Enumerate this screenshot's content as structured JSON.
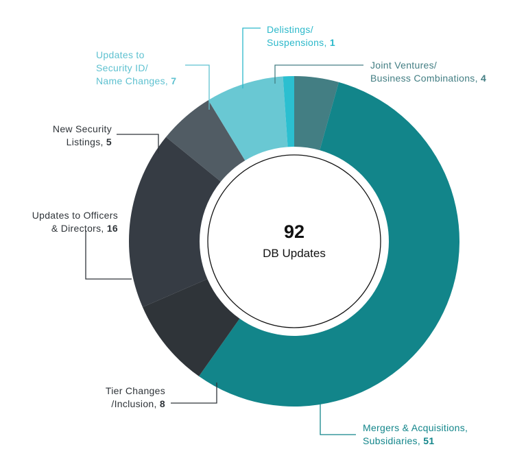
{
  "chart_data": {
    "type": "pie",
    "variant": "donut",
    "center": {
      "value": "92",
      "caption": "DB Updates"
    },
    "total": 92,
    "slices": [
      {
        "label_lines": [
          "Mergers & Acquisitions,",
          "Subsidiaries,"
        ],
        "value": 51,
        "color": "#12858A",
        "text_color": "#12858A"
      },
      {
        "label_lines": [
          "Tier Changes",
          "/Inclusion,"
        ],
        "value": 8,
        "color": "#2F3439",
        "text_color": "#2E3338"
      },
      {
        "label_lines": [
          "Updates to Officers",
          "& Directors,"
        ],
        "value": 16,
        "color": "#363C44",
        "text_color": "#2E3338"
      },
      {
        "label_lines": [
          "New Security",
          "Listings,"
        ],
        "value": 5,
        "color": "#515C64",
        "text_color": "#2E3338"
      },
      {
        "label_lines": [
          "Updates to",
          "Security ID/",
          "Name Changes,"
        ],
        "value": 7,
        "color": "#69C8D3",
        "text_color": "#5EC1D0"
      },
      {
        "label_lines": [
          "Delistings/",
          "Suspensions,"
        ],
        "value": 1,
        "color": "#2BBFD0",
        "text_color": "#2BB8CA"
      },
      {
        "label_lines": [
          "Joint Ventures/",
          "Business Combinations,"
        ],
        "value": 4,
        "color": "#437E83",
        "text_color": "#437E83"
      }
    ],
    "order": "clockwise from 12 o'clock, starting with Joint Ventures/Business Combinations",
    "legend": "none (callout labels with leader lines)"
  }
}
